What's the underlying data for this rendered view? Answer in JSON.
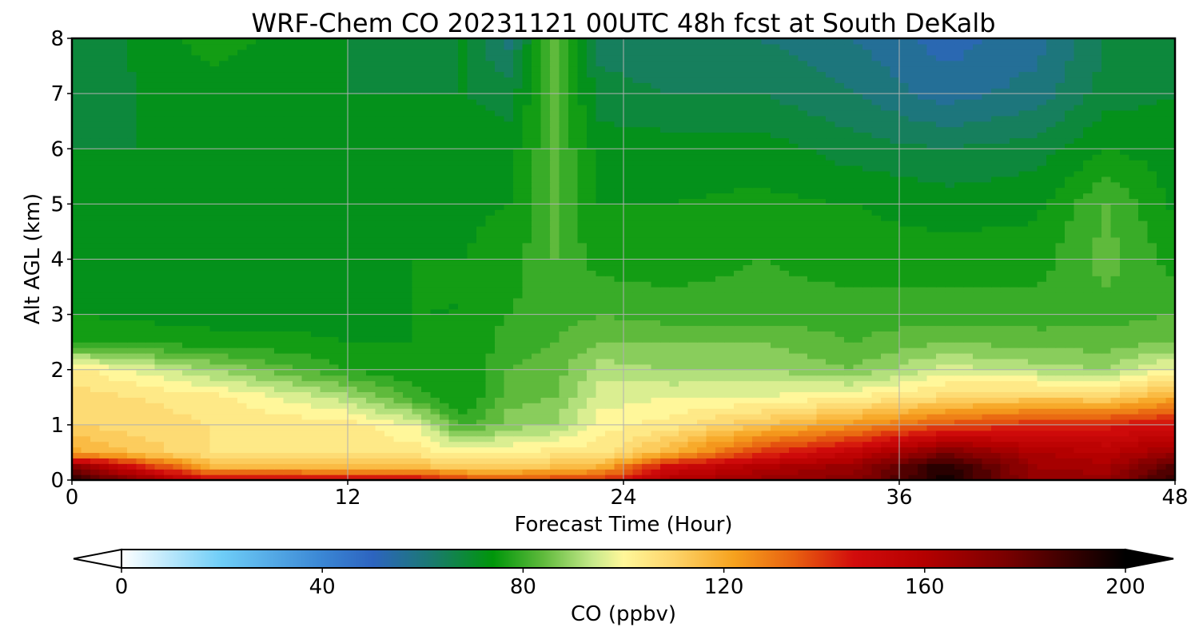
{
  "chart_data": {
    "type": "heatmap",
    "title": "WRF-Chem CO  20231121 00UTC 48h fcst at South DeKalb",
    "xlabel": "Forecast Time (Hour)",
    "ylabel": "Alt AGL (km)",
    "xlim": [
      0,
      48
    ],
    "ylim": [
      0,
      8
    ],
    "x_ticks": [
      0,
      12,
      24,
      36,
      48
    ],
    "x_tick_labels": [
      "0",
      "12",
      "24",
      "36",
      "48"
    ],
    "y_ticks": [
      0,
      1,
      2,
      3,
      4,
      5,
      6,
      7,
      8
    ],
    "y_tick_labels": [
      "0",
      "1",
      "2",
      "3",
      "4",
      "5",
      "6",
      "7",
      "8"
    ],
    "grid": true,
    "colorbar": {
      "label": "CO  (ppbv)",
      "orientation": "horizontal",
      "placement": "bottom",
      "range": [
        0,
        200
      ],
      "extend": "both",
      "ticks": [
        0,
        40,
        80,
        120,
        160,
        200
      ],
      "tick_labels": [
        "0",
        "40",
        "80",
        "120",
        "160",
        "200"
      ],
      "colors": [
        {
          "value": 0,
          "color": "#ffffff"
        },
        {
          "value": 20,
          "color": "#6ecdf7"
        },
        {
          "value": 40,
          "color": "#3a86d4"
        },
        {
          "value": 50,
          "color": "#2d64c0"
        },
        {
          "value": 62,
          "color": "#1a7a6e"
        },
        {
          "value": 74,
          "color": "#00960a"
        },
        {
          "value": 84,
          "color": "#5fba3c"
        },
        {
          "value": 94,
          "color": "#c8ea8c"
        },
        {
          "value": 100,
          "color": "#fff79a"
        },
        {
          "value": 110,
          "color": "#fdd46a"
        },
        {
          "value": 122,
          "color": "#f6a21e"
        },
        {
          "value": 134,
          "color": "#e86010"
        },
        {
          "value": 146,
          "color": "#d20c0c"
        },
        {
          "value": 160,
          "color": "#b40000"
        },
        {
          "value": 176,
          "color": "#7a0000"
        },
        {
          "value": 200,
          "color": "#000000"
        }
      ]
    },
    "grid_x": [
      0,
      6,
      12,
      15,
      17,
      19,
      21,
      23,
      26,
      30,
      34,
      38,
      42,
      45,
      48
    ],
    "grid_y": [
      0,
      0.25,
      0.5,
      1,
      1.5,
      2,
      2.5,
      3,
      4,
      5,
      6,
      7,
      8
    ],
    "z": [
      [
        192,
        150,
        150,
        150,
        140,
        135,
        140,
        140,
        160,
        168,
        172,
        196,
        168,
        168,
        192
      ],
      [
        172,
        118,
        116,
        116,
        110,
        112,
        114,
        118,
        148,
        160,
        168,
        194,
        166,
        164,
        184
      ],
      [
        120,
        106,
        104,
        104,
        100,
        102,
        104,
        104,
        118,
        140,
        154,
        176,
        162,
        158,
        168
      ],
      [
        110,
        106,
        104,
        98,
        80,
        88,
        90,
        100,
        104,
        114,
        124,
        136,
        142,
        144,
        148
      ],
      [
        108,
        104,
        92,
        80,
        74,
        84,
        86,
        96,
        98,
        98,
        102,
        108,
        112,
        110,
        120
      ],
      [
        104,
        90,
        78,
        74,
        74,
        82,
        84,
        92,
        90,
        90,
        86,
        96,
        92,
        90,
        100
      ],
      [
        78,
        76,
        74,
        74,
        74,
        80,
        82,
        86,
        86,
        86,
        82,
        86,
        84,
        84,
        86
      ],
      [
        74,
        72,
        73,
        74,
        74,
        78,
        80,
        82,
        80,
        80,
        80,
        80,
        80,
        80,
        82
      ],
      [
        73,
        73,
        74,
        74,
        74,
        76,
        82,
        76,
        76,
        78,
        76,
        76,
        76,
        84,
        76
      ],
      [
        72,
        71,
        73,
        72,
        73,
        74,
        82,
        74,
        74,
        75,
        74,
        72,
        73,
        82,
        73
      ],
      [
        70,
        70,
        72,
        72,
        74,
        72,
        82,
        72,
        72,
        72,
        68,
        66,
        68,
        74,
        72
      ],
      [
        68,
        72,
        70,
        70,
        70,
        68,
        82,
        68,
        66,
        66,
        62,
        56,
        60,
        68,
        70
      ],
      [
        66,
        76,
        70,
        68,
        70,
        60,
        84,
        64,
        62,
        62,
        58,
        52,
        56,
        66,
        68
      ]
    ]
  }
}
